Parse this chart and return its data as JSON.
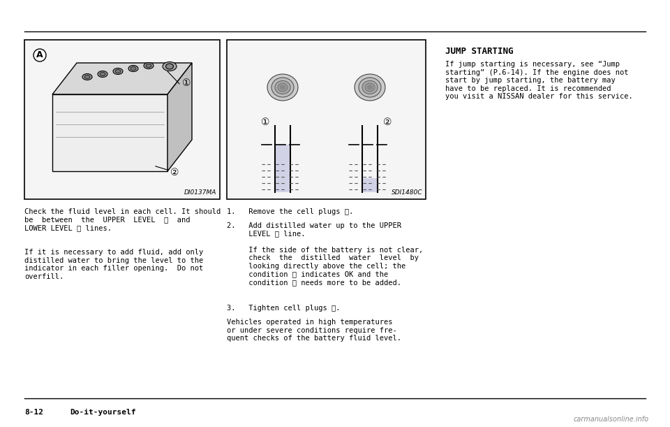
{
  "bg_color": "#ffffff",
  "page_number": "8-12",
  "page_section": "Do-it-yourself",
  "figure1_label": "DI0137MA",
  "figure2_label": "SDI1480C",
  "jump_starting_title": "JUMP STARTING",
  "jump_starting_text": "If jump starting is necessary, see “Jump\nstarting” (P.6-14). If the engine does not\nstart by jump starting, the battery may\nhave to be replaced. It is recommended\nyou visit a NISSAN dealer for this service.",
  "left_text_para1": "Check the fluid level in each cell. It should\nbe  between  the  UPPER  LEVEL  ⓐ  and\nLOWER LEVEL ⓑ lines.",
  "left_text_para2": "If it is necessary to add fluid, add only\ndistilled water to bring the level to the\nindicator in each filler opening.  Do not\noverfill.",
  "right_list_1": "1.   Remove the cell plugs Ⓐ.",
  "right_list_2": "2.   Add distilled water up to the UPPER\n     LEVEL ⓐ line.\n\n     If the side of the battery is not clear,\n     check  the  distilled  water  level  by\n     looking directly above the cell; the\n     condition ⓐ indicates OK and the\n     condition ⓑ needs more to be added.",
  "right_list_3": "3.   Tighten cell plugs Ⓐ.",
  "right_text_bottom": "Vehicles operated in high temperatures\nor under severe conditions require fre-\nquent checks of the battery fluid level.",
  "text_color": "#000000",
  "border_color": "#000000",
  "font_size_body": 7.5,
  "font_size_bold": 7.5,
  "font_size_title": 9.0,
  "font_size_footer": 8.0
}
